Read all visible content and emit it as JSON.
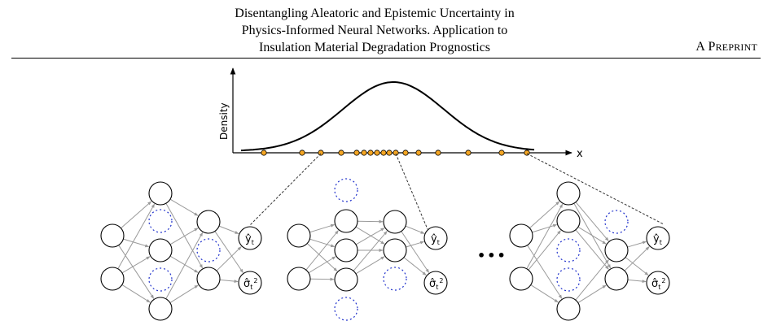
{
  "header": {
    "title_lines": [
      "Disentangling Aleatoric and Epistemic Uncertainty in",
      "Physics-Informed Neural Networks. Application to",
      "Insulation Material Degradation Prognostics"
    ],
    "preprint_first": "A ",
    "preprint_rest_first": "P",
    "preprint_rest": "REPRINT"
  },
  "figure": {
    "density_axis_label": "Density",
    "x_axis_label": "x",
    "ellipsis": "•••",
    "output_mean_label": "ŷ",
    "output_mean_sub": "t",
    "output_var_label": "σ̂",
    "output_var_sub": "t",
    "output_var_sup": "2",
    "colors": {
      "sample_point_fill": "#f5a623",
      "dropped_neuron_stroke": "#2233cc",
      "edge_stroke": "#9a9a9a"
    }
  }
}
